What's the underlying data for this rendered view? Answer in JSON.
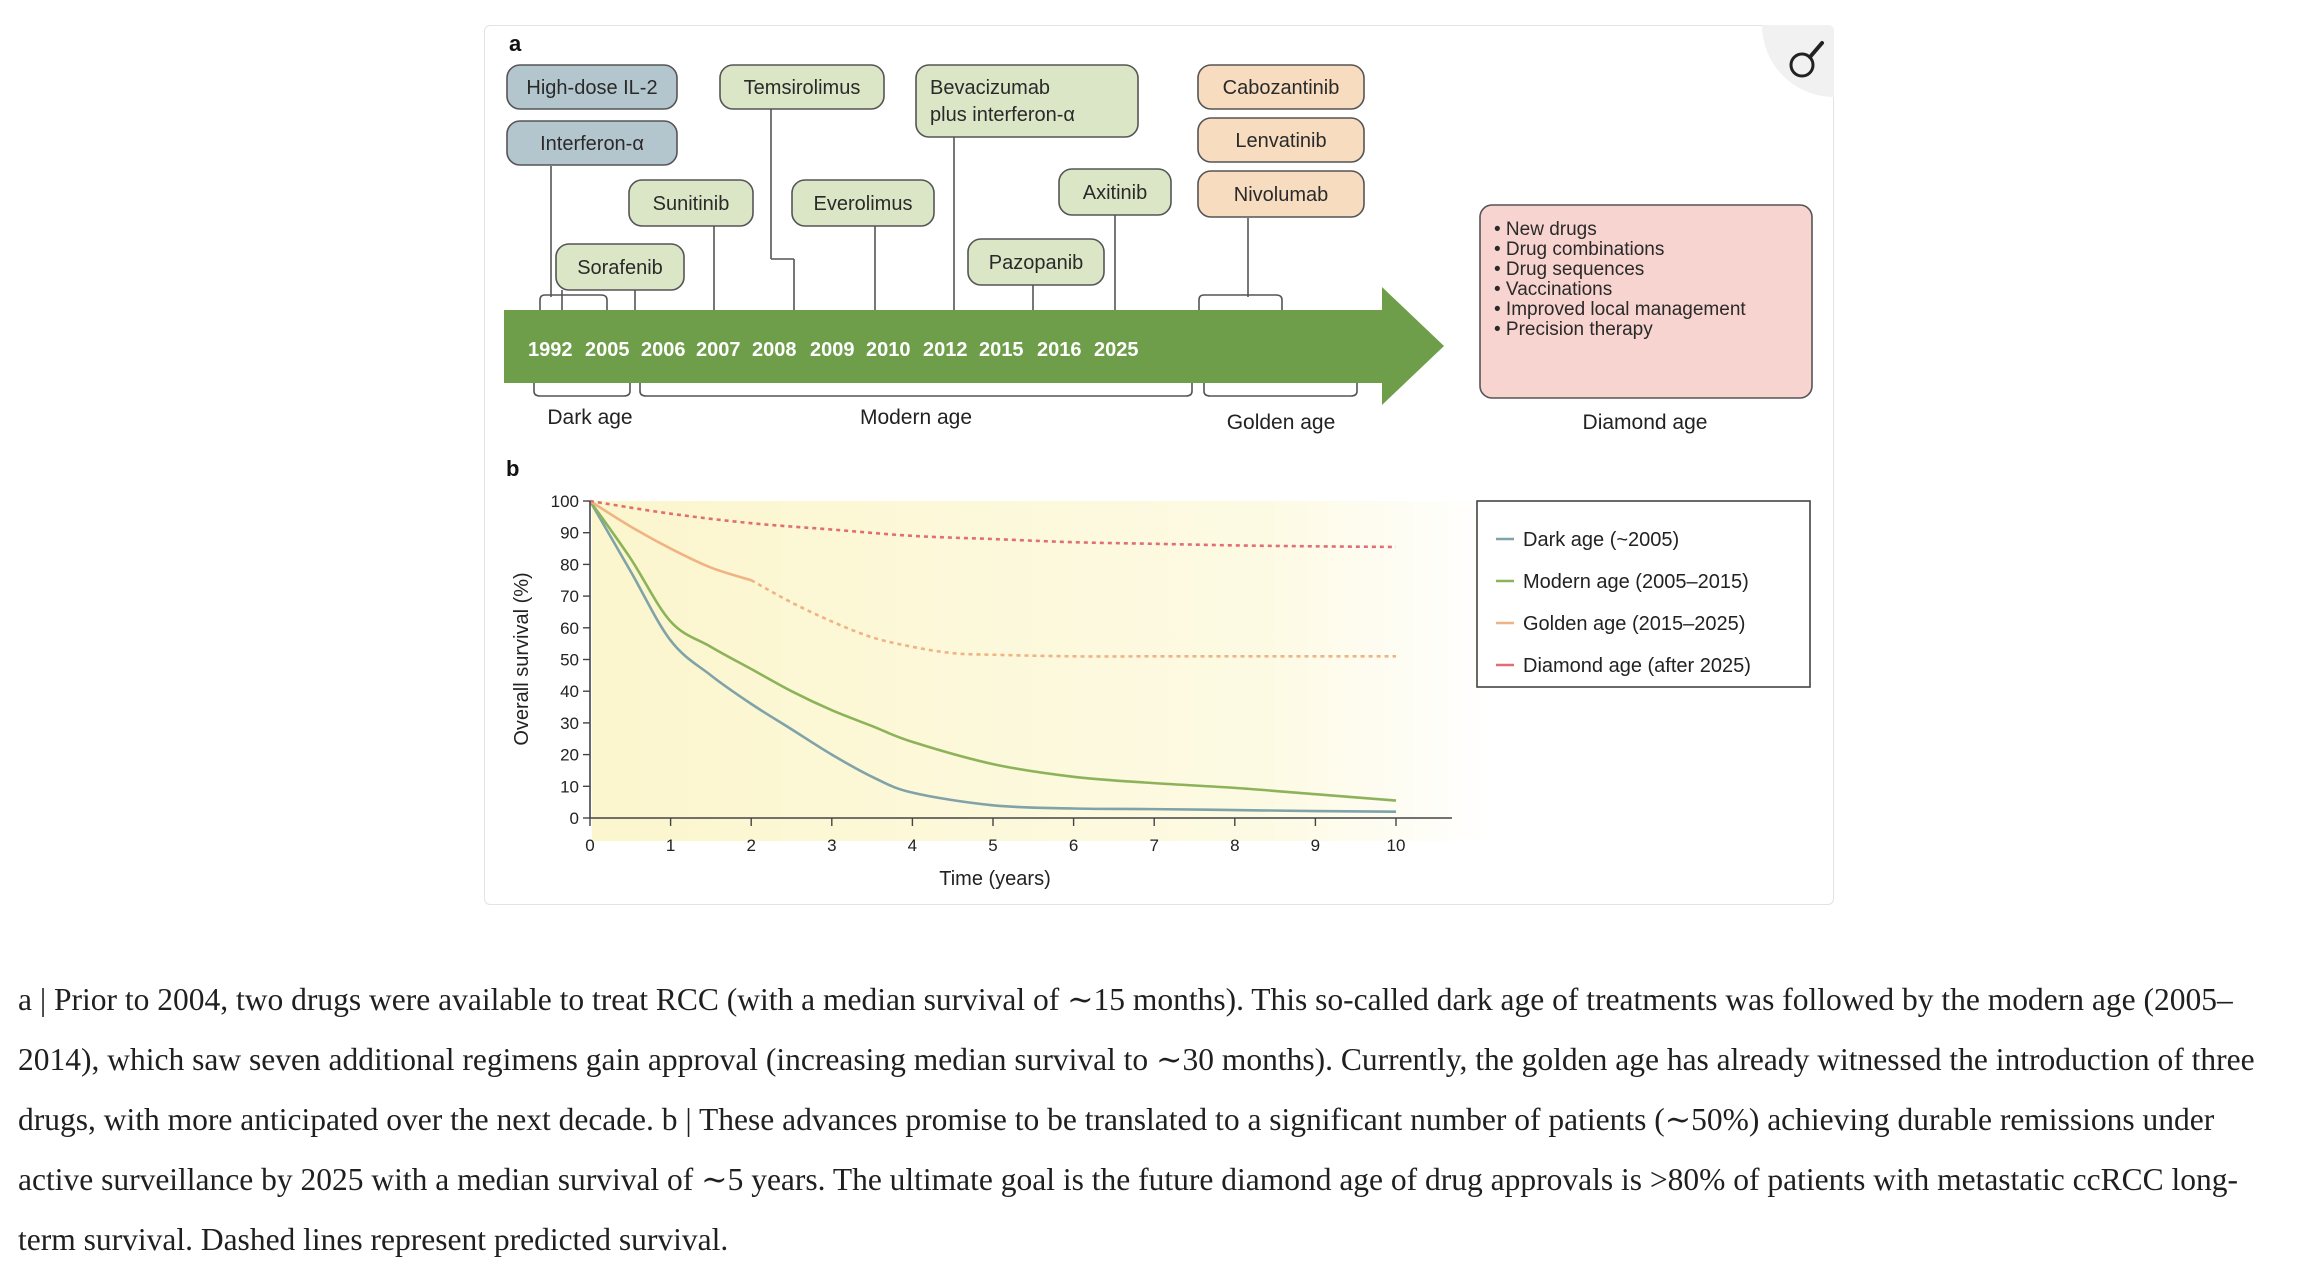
{
  "figure": {
    "panel_a_label": "a",
    "panel_b_label": "b",
    "zoom_button_icon": "magnifier-icon",
    "timeline": {
      "years": [
        "1992",
        "2005",
        "2006",
        "2007",
        "2008",
        "2009",
        "2010",
        "2012",
        "2015",
        "2016",
        "2025"
      ],
      "eras": [
        "Dark age",
        "Modern age",
        "Golden age",
        "Diamond age"
      ],
      "arrow_color": "#6e9e4a",
      "drugs": {
        "il2": "High-dose IL-2",
        "ifn": "Interferon-α",
        "sorafenib": "Sorafenib",
        "sunitinib": "Sunitinib",
        "temsirolimus": "Temsirolimus",
        "everolimus": "Everolimus",
        "bevacizumab_line1": "Bevacizumab",
        "bevacizumab_line2": "plus interferon-α",
        "pazopanib": "Pazopanib",
        "axitinib": "Axitinib",
        "cabozantinib": "Cabozantinib",
        "lenvatinib": "Lenvatinib",
        "nivolumab": "Nivolumab"
      },
      "diamond_items": [
        "• New drugs",
        "• Drug combinations",
        "• Drug sequences",
        "• Vaccinations",
        "• Improved local management",
        "• Precision therapy"
      ]
    },
    "chart_data": {
      "type": "line",
      "title": "",
      "xlabel": "Time (years)",
      "ylabel": "Overall survival (%)",
      "xlim": [
        0,
        10
      ],
      "ylim": [
        0,
        100
      ],
      "xticks": [
        "0",
        "1",
        "2",
        "3",
        "4",
        "5",
        "6",
        "7",
        "8",
        "9",
        "10"
      ],
      "yticks": [
        "0",
        "10",
        "20",
        "30",
        "40",
        "50",
        "60",
        "70",
        "80",
        "90",
        "100"
      ],
      "grid": false,
      "legend_position": "right",
      "series": [
        {
          "name": "Dark age (~2005)",
          "color": "#7fa3a8",
          "dashed": false,
          "x": [
            0,
            0.5,
            1,
            1.5,
            2,
            2.5,
            3,
            3.5,
            4,
            5,
            6,
            7,
            8,
            9,
            10
          ],
          "y": [
            100,
            78,
            56,
            45,
            36,
            28,
            20,
            13,
            8,
            4,
            3,
            2.8,
            2.5,
            2.2,
            2
          ]
        },
        {
          "name": "Modern age (2005–2015)",
          "color": "#8cb35a",
          "dashed": false,
          "x": [
            0,
            0.5,
            1,
            1.5,
            2,
            2.5,
            3,
            3.5,
            4,
            5,
            6,
            7,
            8,
            9,
            10
          ],
          "y": [
            100,
            82,
            62,
            54,
            47,
            40,
            34,
            29,
            24,
            17,
            13,
            11,
            9.5,
            7.5,
            5.5
          ]
        },
        {
          "name": "Golden age (2015–2025)",
          "color": "#efb384",
          "dashed_from_x": 2,
          "x": [
            0,
            0.5,
            1,
            1.5,
            2,
            2.5,
            3,
            3.5,
            4,
            4.5,
            5,
            6,
            7,
            8,
            9,
            10
          ],
          "y": [
            100,
            92,
            85,
            79,
            75,
            68,
            62,
            57,
            54,
            52,
            51.5,
            51,
            51,
            51,
            51,
            51
          ]
        },
        {
          "name": "Diamond age (after 2025)",
          "color": "#e06f73",
          "dashed": true,
          "x": [
            0,
            1,
            2,
            3,
            4,
            5,
            6,
            7,
            8,
            9,
            10
          ],
          "y": [
            100,
            96,
            93,
            91,
            89,
            88,
            87,
            86.5,
            86,
            85.7,
            85.5
          ]
        }
      ]
    }
  },
  "caption": {
    "text": "a | Prior to 2004, two drugs were available to treat RCC (with a median survival of ∼15 months). This so-called dark age of treatments was followed by the modern age (2005–2014), which saw seven additional regimens gain approval (increasing median survival to ∼30 months). Currently, the golden age has already witnessed the introduction of three drugs, with more anticipated over the next decade. b | These advances promise to be translated to a significant number of patients (∼50%) achieving durable remissions under active surveillance by 2025 with a median survival of ∼5 years. The ultimate goal is the future diamond age of drug approvals is >80% of patients with metastatic ccRCC long-term survival. Dashed lines represent predicted survival."
  }
}
